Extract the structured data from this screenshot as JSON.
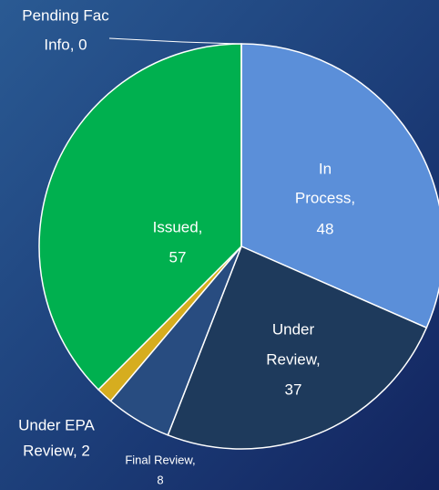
{
  "chart_data": {
    "type": "pie",
    "values": [
      48,
      37,
      8,
      2,
      57,
      0
    ],
    "value_labels": [
      [
        "In",
        "Process,",
        "48"
      ],
      [
        "Under",
        "Review,",
        "37"
      ],
      [
        "Final Review,",
        "8"
      ],
      [
        "Under EPA",
        "Review, 2"
      ],
      [
        "Issued,",
        "57"
      ],
      [
        "Pending Fac",
        "Info, 0"
      ]
    ],
    "colors": [
      "#5b8fd9",
      "#1e3a5c",
      "#284c80",
      "#d6ad1f",
      "#00b04f",
      "#7f7f7f"
    ]
  }
}
